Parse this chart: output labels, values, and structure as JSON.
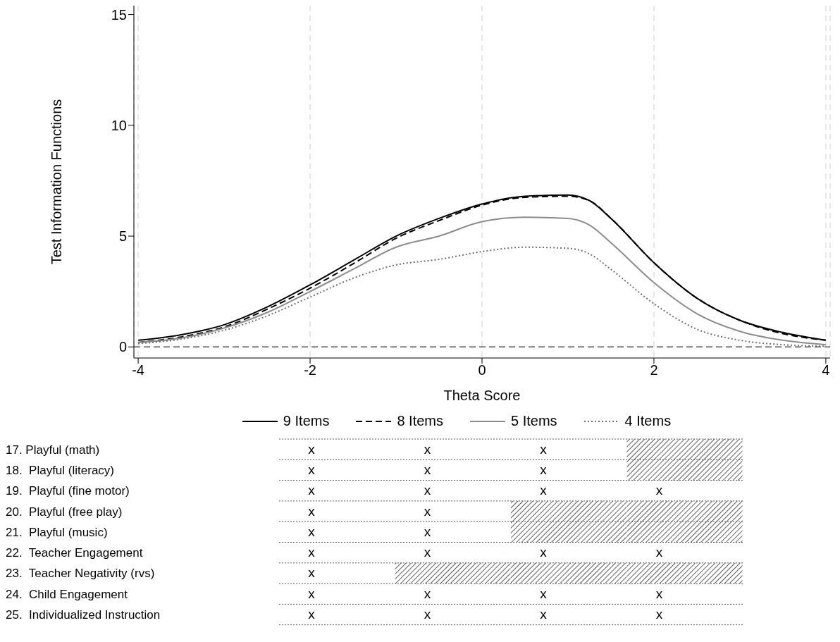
{
  "chart_data": [
    {
      "type": "line",
      "xlabel": "Theta Score",
      "ylabel": "Test Information Functions",
      "xlim": [
        -4.05,
        4.05
      ],
      "xticks": [
        -4,
        -2,
        0,
        2,
        4
      ],
      "ylim": [
        -0.5,
        15.4
      ],
      "yticks": [
        0,
        5,
        10,
        15
      ],
      "grid": "x",
      "legend": "bottom",
      "marker": "none",
      "x": [
        -4,
        -3.5,
        -3,
        -2.5,
        -2,
        -1.5,
        -1,
        -0.5,
        0,
        0.5,
        1,
        1.25,
        1.5,
        2,
        2.5,
        3,
        3.5,
        4
      ],
      "series": [
        {
          "name": "9 Items",
          "color": "#000000",
          "line_style": "solid",
          "values": [
            0.3,
            0.55,
            1.0,
            1.8,
            2.8,
            3.9,
            5.0,
            5.8,
            6.45,
            6.8,
            6.85,
            6.6,
            5.8,
            3.8,
            2.2,
            1.2,
            0.65,
            0.3
          ]
        },
        {
          "name": "8 Items",
          "color": "#000000",
          "line_style": "dashed",
          "values": [
            0.2,
            0.45,
            0.9,
            1.7,
            2.65,
            3.75,
            4.9,
            5.7,
            6.4,
            6.75,
            6.8,
            6.6,
            5.8,
            3.8,
            2.2,
            1.2,
            0.6,
            0.3
          ]
        },
        {
          "name": "5 Items",
          "color": "#8c8c8c",
          "line_style": "solid",
          "values": [
            0.2,
            0.4,
            0.85,
            1.55,
            2.5,
            3.5,
            4.5,
            5.0,
            5.65,
            5.85,
            5.8,
            5.5,
            4.7,
            2.9,
            1.5,
            0.7,
            0.3,
            0.1
          ]
        },
        {
          "name": "4 Items",
          "color": "#707070",
          "line_style": "dotted",
          "values": [
            0.15,
            0.35,
            0.75,
            1.4,
            2.25,
            3.1,
            3.7,
            3.95,
            4.3,
            4.5,
            4.45,
            4.2,
            3.5,
            1.95,
            0.8,
            0.3,
            0.1,
            0.03
          ]
        }
      ],
      "ref_lines": [
        {
          "axis": "y",
          "value": 0,
          "color": "#555555",
          "line_style": "dashed"
        }
      ]
    },
    {
      "type": "other",
      "y_categories": [
        "17. Playful (math)",
        "18.  Playful (literacy)",
        "19.  Playful (fine motor)",
        "20.  Playful (free play)",
        "21.  Playful (music)",
        "22.  Teacher Engagement",
        "23.  Teacher Negativity (rvs)",
        "24.  Child Engagement",
        "25.  Individualized Instruction"
      ],
      "cell_labels": [
        [
          "x",
          "x",
          "x",
          null
        ],
        [
          "x",
          "x",
          "x",
          null
        ],
        [
          "x",
          "x",
          "x",
          "x"
        ],
        [
          "x",
          "x",
          null,
          null
        ],
        [
          "x",
          "x",
          null,
          null
        ],
        [
          "x",
          "x",
          "x",
          "x"
        ],
        [
          "x",
          null,
          null,
          null
        ],
        [
          "x",
          "x",
          "x",
          "x"
        ],
        [
          "x",
          "x",
          "x",
          "x"
        ]
      ]
    }
  ]
}
